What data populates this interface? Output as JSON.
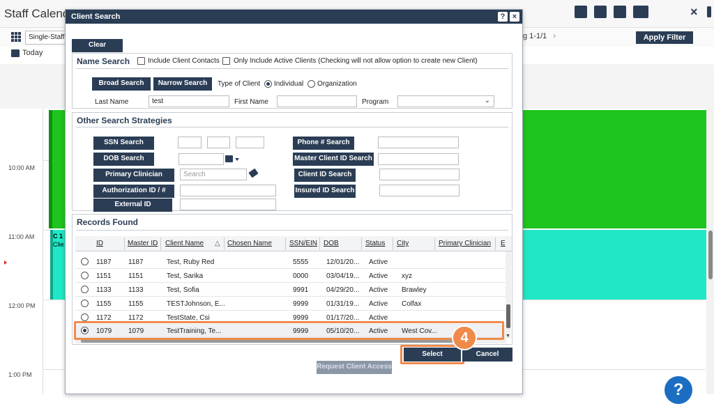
{
  "background": {
    "title": "Staff Calend",
    "view_select": "Single-Staff V",
    "paging": "g 1-1/1",
    "apply_filter": "Apply Filter",
    "today": "Today",
    "times": [
      "10:00 AM",
      "11:00 AM",
      "12:00 PM",
      "1:00 PM"
    ],
    "event_label_1": "C 1",
    "event_label_2": "Clie",
    "help": "?"
  },
  "dialog": {
    "title": "Client Search",
    "help_button": "?",
    "close_button": "×",
    "clear": "Clear",
    "name_search": {
      "title": "Name Search",
      "include_contacts": "Include Client Contacts",
      "only_active": "Only Include Active Clients (Checking will not allow option to create new Client)",
      "broad_search": "Broad Search",
      "narrow_search": "Narrow Search",
      "type_of_client": "Type of Client",
      "individual": "Individual",
      "organization": "Organization",
      "last_name_label": "Last Name",
      "last_name_value": "test",
      "first_name_label": "First Name",
      "program_label": "Program"
    },
    "other": {
      "title": "Other Search Strategies",
      "ssn_search": "SSN Search",
      "dob_search": "DOB Search",
      "primary_clinician_search": "Primary Clinician Search",
      "search_placeholder": "Search",
      "authorization_id": "Authorization ID / #",
      "external_id": "External ID",
      "phone_search": "Phone # Search",
      "master_client_id_search": "Master Client ID Search",
      "client_id_search": "Client ID Search",
      "insured_id_search": "Insured ID Search"
    },
    "records": {
      "title": "Records Found",
      "columns": [
        "ID",
        "Master ID",
        "Client Name",
        "Chosen Name",
        "SSN/EIN",
        "DOB",
        "Status",
        "City",
        "Primary Clinician",
        "E"
      ],
      "rows": [
        {
          "id": "1187",
          "master": "1187",
          "name": "Test, Ruby Red",
          "ssn": "5555",
          "dob": "12/01/20...",
          "status": "Active",
          "city": ""
        },
        {
          "id": "1151",
          "master": "1151",
          "name": "Test, Sarika",
          "ssn": "0000",
          "dob": "03/04/19...",
          "status": "Active",
          "city": "xyz"
        },
        {
          "id": "1133",
          "master": "1133",
          "name": "Test, Sofia",
          "ssn": "9991",
          "dob": "04/29/20...",
          "status": "Active",
          "city": "Brawley"
        },
        {
          "id": "1155",
          "master": "1155",
          "name": "TESTJohnson, E...",
          "ssn": "9999",
          "dob": "01/31/19...",
          "status": "Active",
          "city": "Colfax"
        },
        {
          "id": "1172",
          "master": "1172",
          "name": "TestState, Csi",
          "ssn": "9999",
          "dob": "01/17/20...",
          "status": "Active",
          "city": ""
        },
        {
          "id": "1079",
          "master": "1079",
          "name": "TestTraining, Te...",
          "ssn": "9999",
          "dob": "05/10/20...",
          "status": "Active",
          "city": "West Cov..."
        }
      ]
    },
    "select": "Select",
    "cancel": "Cancel",
    "request_access": "Request Client Access",
    "step_number": "4"
  }
}
